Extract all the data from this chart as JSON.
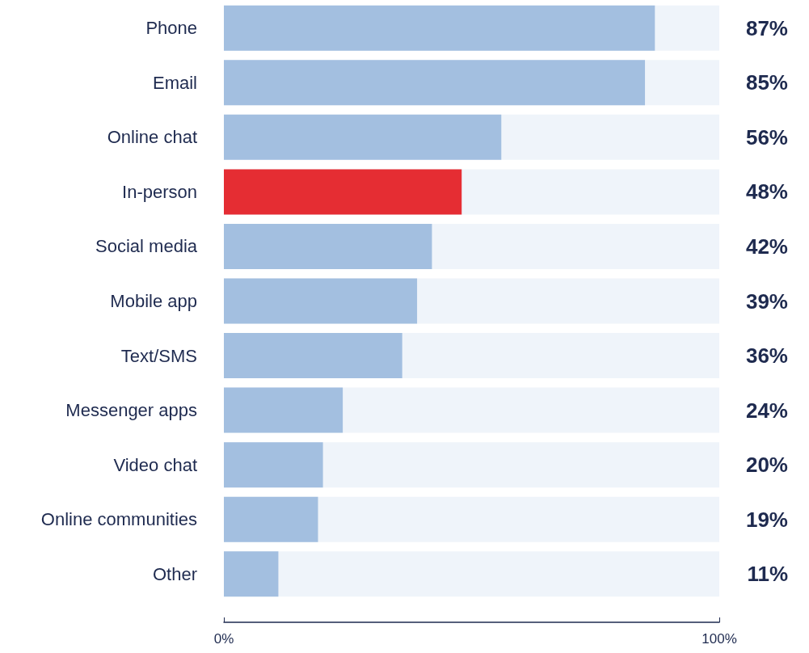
{
  "chart_data": {
    "type": "bar",
    "orientation": "horizontal",
    "categories": [
      "Phone",
      "Email",
      "Online chat",
      "In-person",
      "Social media",
      "Mobile app",
      "Text/SMS",
      "Messenger apps",
      "Video chat",
      "Online communities",
      "Other"
    ],
    "values": [
      87,
      85,
      56,
      48,
      42,
      39,
      36,
      24,
      20,
      19,
      11
    ],
    "colors": [
      "#a3bfe0",
      "#a3bfe0",
      "#a3bfe0",
      "#e52d33",
      "#a3bfe0",
      "#a3bfe0",
      "#a3bfe0",
      "#a3bfe0",
      "#a3bfe0",
      "#a3bfe0",
      "#a3bfe0"
    ],
    "value_labels": [
      "87%",
      "85%",
      "56%",
      "48%",
      "42%",
      "39%",
      "36%",
      "24%",
      "20%",
      "19%",
      "11%"
    ],
    "xlim": [
      0,
      100
    ],
    "xticks": [
      {
        "value": 0,
        "label": "0%"
      },
      {
        "value": 100,
        "label": "100%"
      }
    ],
    "grid": false
  }
}
